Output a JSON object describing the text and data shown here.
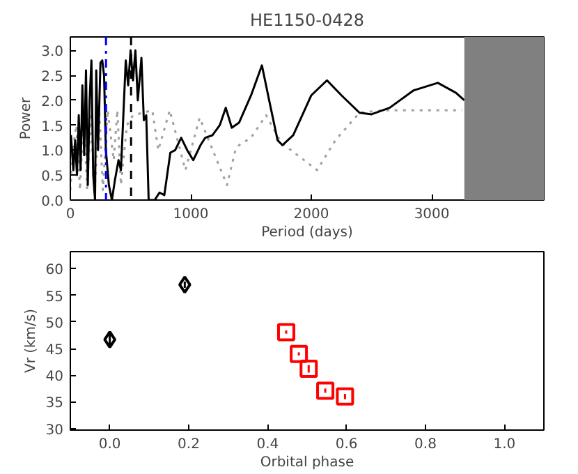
{
  "chart_data": [
    {
      "type": "line",
      "title": "HE1150-0428",
      "xlabel": "Period (days)",
      "ylabel": "Power",
      "xlim": [
        0,
        3930
      ],
      "ylim": [
        0,
        3.27
      ],
      "xticks": [
        0,
        1000,
        2000,
        3000
      ],
      "yticks": [
        {
          "value": 0,
          "label": "0.0"
        },
        {
          "value": 0.5,
          "label": "0.5"
        },
        {
          "value": 1,
          "label": "1.0"
        },
        {
          "value": 1.5,
          "label": "1.5"
        },
        {
          "value": 2,
          "label": "2.0"
        },
        {
          "value": 2.5,
          "label": "2.5"
        },
        {
          "value": 3,
          "label": "3.0"
        }
      ],
      "grid": false,
      "series": [
        {
          "color": "#a0a0a0",
          "line_style": "dotted",
          "x": [
            0,
            20,
            50,
            80,
            110,
            140,
            170,
            200,
            240,
            270,
            310,
            360,
            390,
            420,
            470,
            520,
            600,
            680,
            730,
            825,
            955,
            1073,
            1300,
            1370,
            1400,
            1500,
            1625,
            1750,
            2048,
            2200,
            2400,
            2600,
            3250
          ],
          "values": [
            0.2,
            1.0,
            1.5,
            0.2,
            1.7,
            0.2,
            1.75,
            0.1,
            1.8,
            0.2,
            1.8,
            0.8,
            1.8,
            0.3,
            1.5,
            1.7,
            1.75,
            1.8,
            1.0,
            1.8,
            0.6,
            1.65,
            0.3,
            1.0,
            1.1,
            1.25,
            1.7,
            1.15,
            0.6,
            1.2,
            1.75,
            1.8,
            1.8
          ]
        },
        {
          "color": "#000000",
          "line_style": "solid",
          "x": [
            5,
            25,
            40,
            55,
            70,
            85,
            100,
            115,
            130,
            145,
            160,
            175,
            190,
            205,
            215,
            230,
            250,
            265,
            280,
            295,
            320,
            345,
            370,
            400,
            420,
            440,
            460,
            480,
            500,
            520,
            540,
            560,
            590,
            610,
            630,
            650,
            700,
            740,
            780,
            830,
            870,
            920,
            970,
            1020,
            1080,
            1120,
            1180,
            1240,
            1290,
            1340,
            1400,
            1500,
            1590,
            1650,
            1720,
            1760,
            1850,
            2000,
            2130,
            2250,
            2400,
            2500,
            2650,
            2850,
            3050,
            3200,
            3270
          ],
          "values": [
            1.3,
            0.6,
            1.2,
            0.5,
            1.7,
            0.6,
            2.3,
            0.9,
            2.6,
            0.3,
            2.0,
            2.8,
            0.5,
            0.0,
            2.6,
            1.0,
            2.75,
            2.8,
            2.5,
            1.0,
            0.3,
            0.0,
            0.4,
            0.8,
            0.6,
            1.7,
            2.8,
            2.3,
            3.0,
            2.4,
            3.0,
            2.0,
            2.85,
            1.6,
            1.7,
            0.0,
            0.0,
            0.15,
            0.1,
            0.95,
            1.0,
            1.25,
            1.0,
            0.8,
            1.1,
            1.25,
            1.3,
            1.5,
            1.85,
            1.45,
            1.55,
            2.1,
            2.7,
            2.0,
            1.2,
            1.1,
            1.3,
            2.1,
            2.4,
            2.1,
            1.75,
            1.72,
            1.85,
            2.2,
            2.35,
            2.15,
            2.0
          ]
        }
      ],
      "ref_lines": [
        {
          "axis": "x",
          "value": 296,
          "color": "#0000ff",
          "line_style": "dashdot"
        },
        {
          "axis": "x",
          "value": 504,
          "color": "#000000",
          "line_style": "dashed"
        }
      ],
      "bands": [
        {
          "axis": "x",
          "from": 3270,
          "to": 3930,
          "color": "#808080"
        }
      ]
    },
    {
      "type": "scatter",
      "xlabel": "Orbital phase",
      "ylabel": "Vr (km/s)",
      "xlim": [
        -0.1,
        1.1
      ],
      "ylim": [
        29.7,
        63.2
      ],
      "xticks": [
        {
          "value": 0,
          "label": "0.0"
        },
        {
          "value": 0.2,
          "label": "0.2"
        },
        {
          "value": 0.4,
          "label": "0.4"
        },
        {
          "value": 0.6,
          "label": "0.6"
        },
        {
          "value": 0.8,
          "label": "0.8"
        },
        {
          "value": 1,
          "label": "1.0"
        }
      ],
      "yticks": [
        30,
        35,
        40,
        45,
        50,
        55,
        60
      ],
      "grid": false,
      "series": [
        {
          "marker": "diamond",
          "color": "#000000",
          "x": [
            0.0,
            0.19
          ],
          "values": [
            46.7,
            57.0
          ],
          "errors": [
            1.5,
            0.6
          ]
        },
        {
          "marker": "square",
          "color": "#ff0000",
          "x": [
            0.447,
            0.479,
            0.504,
            0.546,
            0.596
          ],
          "values": [
            48.1,
            44.0,
            41.2,
            37.1,
            36.0
          ],
          "errors": [
            0.3,
            0.3,
            0.7,
            0.4,
            0.5
          ]
        }
      ]
    }
  ]
}
